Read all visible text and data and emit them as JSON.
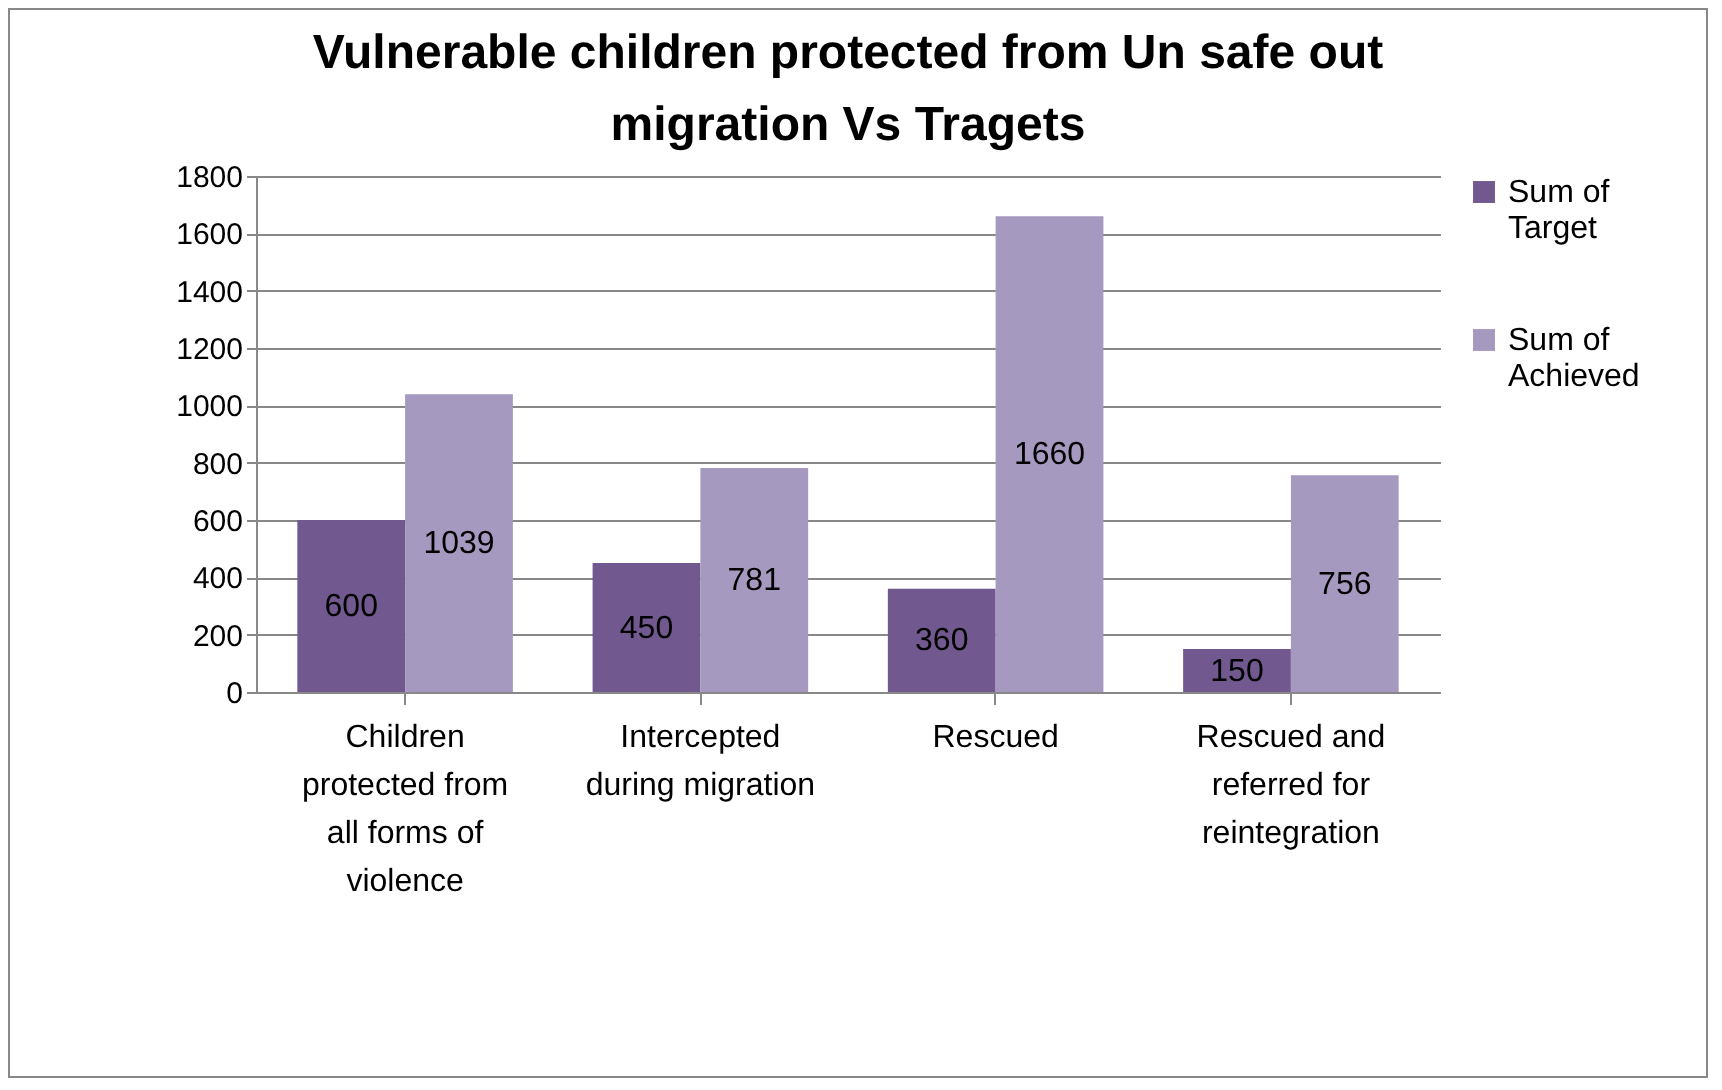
{
  "chart_data": {
    "type": "bar",
    "title": "Vulnerable children protected from Un safe out migration Vs Tragets",
    "categories": [
      "Children protected from all forms of violence",
      "Intercepted during migration",
      "Rescued",
      "Rescued and referred for reintegration"
    ],
    "series": [
      {
        "name": "Sum of Target",
        "color": "#71588f",
        "values": [
          600,
          450,
          360,
          150
        ]
      },
      {
        "name": "Sum of Achieved",
        "color": "#a599c0",
        "values": [
          1039,
          781,
          1660,
          756
        ]
      }
    ],
    "ylim": [
      0,
      1800
    ],
    "yticks": [
      0,
      200,
      400,
      600,
      800,
      1000,
      1200,
      1400,
      1600,
      1800
    ],
    "grid": "y",
    "legend": "right",
    "data_labels": true
  }
}
